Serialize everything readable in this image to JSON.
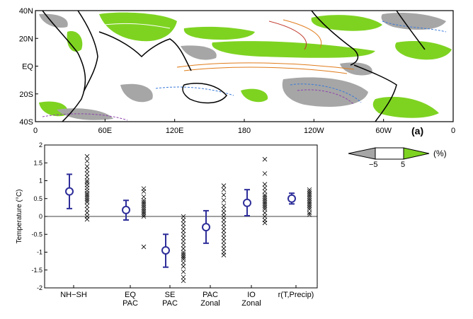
{
  "chart_data": [
    {
      "type": "heatmap",
      "panel_label": "(a)",
      "y_ticks": [
        "40N",
        "20N",
        "EQ",
        "20S",
        "40S"
      ],
      "x_ticks": [
        "0",
        "60E",
        "120E",
        "180",
        "120W",
        "60W",
        "0"
      ],
      "lat_range": [
        -40,
        40
      ],
      "lon_range": [
        0,
        360
      ],
      "colors": {
        "positive": "#7ed321",
        "negative": "#a6a6a6",
        "warm_contour": "#e07b1a",
        "cold_contour": "#3a7ad9",
        "land": "#000000"
      },
      "colorbar": {
        "ticks": [
          "−5",
          "5"
        ],
        "unit": "(%)"
      }
    },
    {
      "type": "scatter",
      "ylabel": "Temperature (°C)",
      "ylim": [
        -2,
        2
      ],
      "y_ticks": [
        "2",
        "1.5",
        "1",
        "0.5",
        "0",
        "-0.5",
        "-1",
        "-1.5",
        "-2"
      ],
      "categories": [
        [
          "NH−SH"
        ],
        [
          "EQ",
          "PAC"
        ],
        [
          "SE",
          "PAC"
        ],
        [
          "PAC",
          "Zonal"
        ],
        [
          "IO",
          "Zonal"
        ],
        [
          "r(T,Precip)"
        ]
      ],
      "mean": [
        0.7,
        0.18,
        -0.95,
        -0.3,
        0.38,
        0.5
      ],
      "lower": [
        0.22,
        -0.1,
        -1.42,
        -0.75,
        0.02,
        0.35
      ],
      "upper": [
        1.18,
        0.45,
        -0.5,
        0.16,
        0.75,
        0.65
      ],
      "members": [
        [
          1.68,
          1.55,
          1.4,
          1.3,
          1.2,
          1.1,
          1.0,
          0.95,
          0.88,
          0.8,
          0.72,
          0.65,
          0.6,
          0.55,
          0.5,
          0.45,
          0.4,
          0.3,
          0.2,
          0.1,
          0.0,
          -0.08
        ],
        [
          0.78,
          0.7,
          0.55,
          0.45,
          0.4,
          0.35,
          0.3,
          0.25,
          0.2,
          0.15,
          0.1,
          0.05,
          0.0,
          -0.85
        ],
        [
          0.0,
          -0.1,
          -0.2,
          -0.3,
          -0.4,
          -0.5,
          -0.6,
          -0.7,
          -0.8,
          -0.9,
          -1.0,
          -1.05,
          -1.1,
          -1.15,
          -1.2,
          -1.3,
          -1.4,
          -1.55,
          -1.7,
          -1.8
        ],
        [
          0.86,
          0.75,
          0.6,
          0.45,
          0.3,
          0.2,
          0.1,
          0.0,
          -0.1,
          -0.2,
          -0.3,
          -0.4,
          -0.5,
          -0.6,
          -0.7,
          -0.8,
          -0.9,
          -1.0,
          -1.08
        ],
        [
          1.6,
          1.2,
          0.9,
          0.8,
          0.7,
          0.6,
          0.55,
          0.5,
          0.45,
          0.4,
          0.35,
          0.3,
          0.25,
          0.2,
          0.1,
          0.0,
          -0.1,
          -0.18
        ],
        [
          0.75,
          0.7,
          0.65,
          0.6,
          0.55,
          0.5,
          0.45,
          0.4,
          0.35,
          0.3,
          0.25,
          0.2,
          0.1,
          0.05
        ]
      ],
      "colors": {
        "mean_marker": "#2e2e9a",
        "member_marker": "#000000"
      }
    }
  ]
}
